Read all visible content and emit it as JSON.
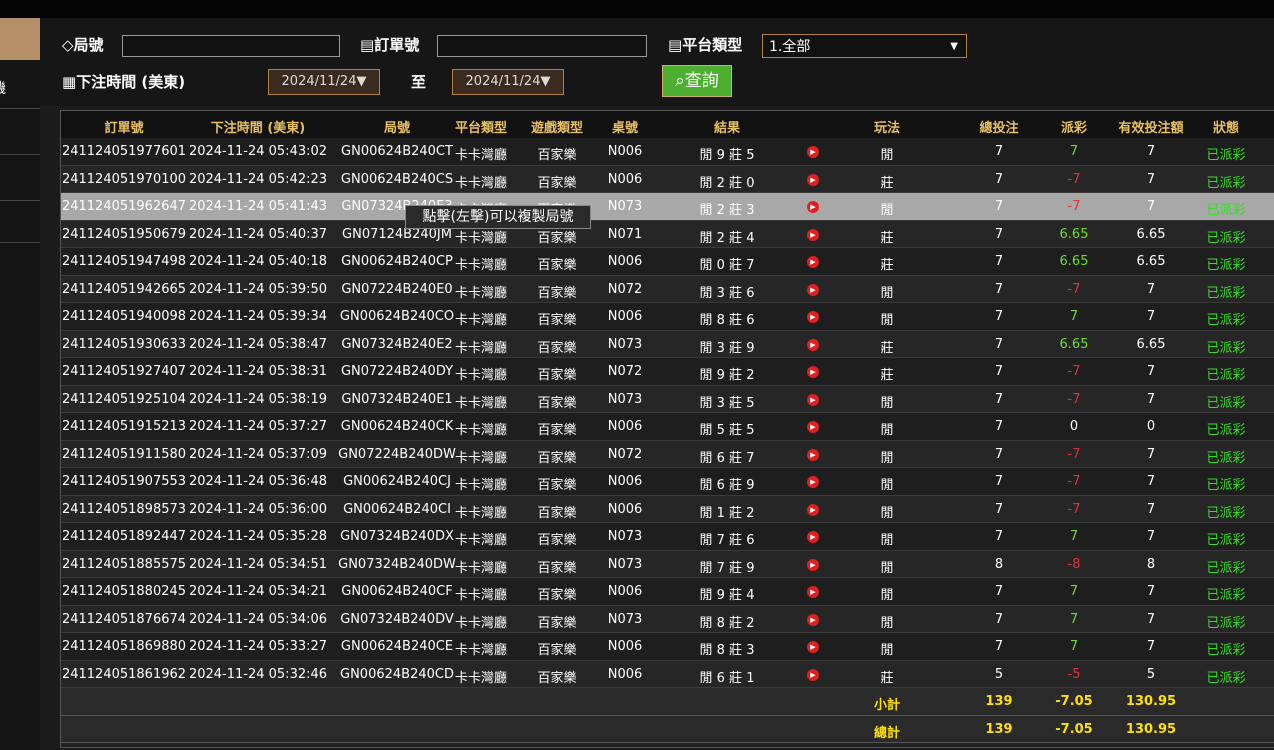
{
  "sidebar": {
    "items": [
      "機"
    ]
  },
  "filters": {
    "round_label": "局號",
    "order_label": "訂單號",
    "platform_label": "平台類型",
    "platform_value": "1.全部",
    "time_label": "下注時間 (美東)",
    "date_from": "2024/11/24▼",
    "to_label": "至",
    "date_to": "2024/11/24▼",
    "query_button": "查詢"
  },
  "table": {
    "headers": [
      "訂單號",
      "下注時間 (美東)",
      "局號",
      "平台類型",
      "遊戲類型",
      "桌號",
      "結果",
      "玩法",
      "總投注",
      "派彩",
      "有效投注額",
      "狀態"
    ],
    "rows": [
      [
        "241124051977601",
        "2024-11-24 05:43:02",
        "GN00624B240CT",
        "卡卡灣廳",
        "百家樂",
        "N006",
        "閒 9 莊 5",
        "閒",
        "7",
        "7",
        "7",
        "已派彩"
      ],
      [
        "241124051970100",
        "2024-11-24 05:42:23",
        "GN00624B240CS",
        "卡卡灣廳",
        "百家樂",
        "N006",
        "閒 2 莊 0",
        "莊",
        "7",
        "-7",
        "7",
        "已派彩"
      ],
      [
        "241124051962647",
        "2024-11-24 05:41:43",
        "GN07324B240E3",
        "卡卡灣廳",
        "百家樂",
        "N073",
        "閒 2 莊 3",
        "閒",
        "7",
        "-7",
        "7",
        "已派彩"
      ],
      [
        "241124051950679",
        "2024-11-24 05:40:37",
        "GN07124B240JM",
        "卡卡灣廳",
        "百家樂",
        "N071",
        "閒 2 莊 4",
        "莊",
        "7",
        "6.65",
        "6.65",
        "已派彩"
      ],
      [
        "241124051947498",
        "2024-11-24 05:40:18",
        "GN00624B240CP",
        "卡卡灣廳",
        "百家樂",
        "N006",
        "閒 0 莊 7",
        "莊",
        "7",
        "6.65",
        "6.65",
        "已派彩"
      ],
      [
        "241124051942665",
        "2024-11-24 05:39:50",
        "GN07224B240E0",
        "卡卡灣廳",
        "百家樂",
        "N072",
        "閒 3 莊 6",
        "閒",
        "7",
        "-7",
        "7",
        "已派彩"
      ],
      [
        "241124051940098",
        "2024-11-24 05:39:34",
        "GN00624B240CO",
        "卡卡灣廳",
        "百家樂",
        "N006",
        "閒 8 莊 6",
        "閒",
        "7",
        "7",
        "7",
        "已派彩"
      ],
      [
        "241124051930633",
        "2024-11-24 05:38:47",
        "GN07324B240E2",
        "卡卡灣廳",
        "百家樂",
        "N073",
        "閒 3 莊 9",
        "莊",
        "7",
        "6.65",
        "6.65",
        "已派彩"
      ],
      [
        "241124051927407",
        "2024-11-24 05:38:31",
        "GN07224B240DY",
        "卡卡灣廳",
        "百家樂",
        "N072",
        "閒 9 莊 2",
        "莊",
        "7",
        "-7",
        "7",
        "已派彩"
      ],
      [
        "241124051925104",
        "2024-11-24 05:38:19",
        "GN07324B240E1",
        "卡卡灣廳",
        "百家樂",
        "N073",
        "閒 3 莊 5",
        "閒",
        "7",
        "-7",
        "7",
        "已派彩"
      ],
      [
        "241124051915213",
        "2024-11-24 05:37:27",
        "GN00624B240CK",
        "卡卡灣廳",
        "百家樂",
        "N006",
        "閒 5 莊 5",
        "閒",
        "7",
        "0",
        "0",
        "已派彩"
      ],
      [
        "241124051911580",
        "2024-11-24 05:37:09",
        "GN07224B240DW",
        "卡卡灣廳",
        "百家樂",
        "N072",
        "閒 6 莊 7",
        "閒",
        "7",
        "-7",
        "7",
        "已派彩"
      ],
      [
        "241124051907553",
        "2024-11-24 05:36:48",
        "GN00624B240CJ",
        "卡卡灣廳",
        "百家樂",
        "N006",
        "閒 6 莊 9",
        "閒",
        "7",
        "-7",
        "7",
        "已派彩"
      ],
      [
        "241124051898573",
        "2024-11-24 05:36:00",
        "GN00624B240CI",
        "卡卡灣廳",
        "百家樂",
        "N006",
        "閒 1 莊 2",
        "閒",
        "7",
        "-7",
        "7",
        "已派彩"
      ],
      [
        "241124051892447",
        "2024-11-24 05:35:28",
        "GN07324B240DX",
        "卡卡灣廳",
        "百家樂",
        "N073",
        "閒 7 莊 6",
        "閒",
        "7",
        "7",
        "7",
        "已派彩"
      ],
      [
        "241124051885575",
        "2024-11-24 05:34:51",
        "GN07324B240DW",
        "卡卡灣廳",
        "百家樂",
        "N073",
        "閒 7 莊 9",
        "閒",
        "8",
        "-8",
        "8",
        "已派彩"
      ],
      [
        "241124051880245",
        "2024-11-24 05:34:21",
        "GN00624B240CF",
        "卡卡灣廳",
        "百家樂",
        "N006",
        "閒 9 莊 4",
        "閒",
        "7",
        "7",
        "7",
        "已派彩"
      ],
      [
        "241124051876674",
        "2024-11-24 05:34:06",
        "GN07324B240DV",
        "卡卡灣廳",
        "百家樂",
        "N073",
        "閒 8 莊 2",
        "閒",
        "7",
        "7",
        "7",
        "已派彩"
      ],
      [
        "241124051869880",
        "2024-11-24 05:33:27",
        "GN00624B240CE",
        "卡卡灣廳",
        "百家樂",
        "N006",
        "閒 8 莊 3",
        "閒",
        "7",
        "7",
        "7",
        "已派彩"
      ],
      [
        "241124051861962",
        "2024-11-24 05:32:46",
        "GN00624B240CD",
        "卡卡灣廳",
        "百家樂",
        "N006",
        "閒 6 莊 1",
        "莊",
        "5",
        "-5",
        "5",
        "已派彩"
      ]
    ],
    "summary": [
      [
        "小計",
        "139",
        "-7.05",
        "130.95"
      ],
      [
        "總計",
        "139",
        "-7.05",
        "130.95"
      ]
    ],
    "highlighted_row": 2
  },
  "tooltip": "點擊(左擊)可以複製局號"
}
